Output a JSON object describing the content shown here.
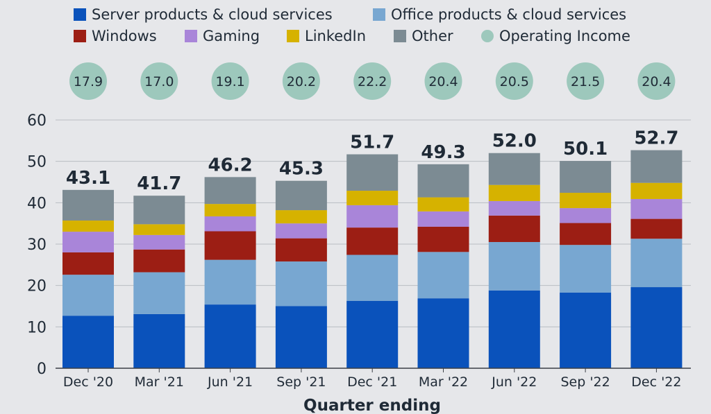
{
  "chart_data": {
    "type": "bar",
    "stacked": true,
    "categories": [
      "Dec '20",
      "Mar '21",
      "Jun '21",
      "Sep '21",
      "Dec '21",
      "Mar '22",
      "Jun '22",
      "Sep '22",
      "Dec '22"
    ],
    "series": [
      {
        "name": "Server products & cloud services",
        "color": "#0a52bb",
        "values": [
          12.7,
          13.1,
          15.4,
          15.0,
          16.3,
          16.9,
          18.8,
          18.3,
          19.6
        ]
      },
      {
        "name": "Office products & cloud services",
        "color": "#78a7d1",
        "values": [
          9.9,
          10.1,
          10.8,
          10.8,
          11.1,
          11.2,
          11.7,
          11.5,
          11.7
        ]
      },
      {
        "name": "Windows",
        "color": "#9c1e14",
        "values": [
          5.4,
          5.5,
          6.9,
          5.6,
          6.6,
          6.1,
          6.4,
          5.3,
          4.8
        ]
      },
      {
        "name": "Gaming",
        "color": "#a985d9",
        "values": [
          5.0,
          3.5,
          3.6,
          3.6,
          5.4,
          3.7,
          3.5,
          3.6,
          4.8
        ]
      },
      {
        "name": "LinkedIn",
        "color": "#d6b200",
        "values": [
          2.7,
          2.6,
          3.0,
          3.2,
          3.5,
          3.4,
          3.9,
          3.7,
          3.9
        ]
      },
      {
        "name": "Other",
        "color": "#7c8b93",
        "values": [
          7.4,
          6.9,
          6.5,
          7.1,
          8.8,
          8.0,
          7.7,
          7.7,
          7.9
        ]
      }
    ],
    "totals": [
      "43.1",
      "41.7",
      "46.2",
      "45.3",
      "51.7",
      "49.3",
      "52.0",
      "50.1",
      "52.7"
    ],
    "operating_income": {
      "name": "Operating Income",
      "color": "#9dc8bc",
      "values": [
        "17.9",
        "17.0",
        "19.1",
        "20.2",
        "22.2",
        "20.4",
        "20.5",
        "21.5",
        "20.4"
      ]
    },
    "xlabel": "Quarter ending",
    "ylabel": "",
    "ylim": [
      0,
      60
    ],
    "yticks": [
      0,
      10,
      20,
      30,
      40,
      50,
      60
    ],
    "grid": true,
    "legend_position": "top"
  }
}
